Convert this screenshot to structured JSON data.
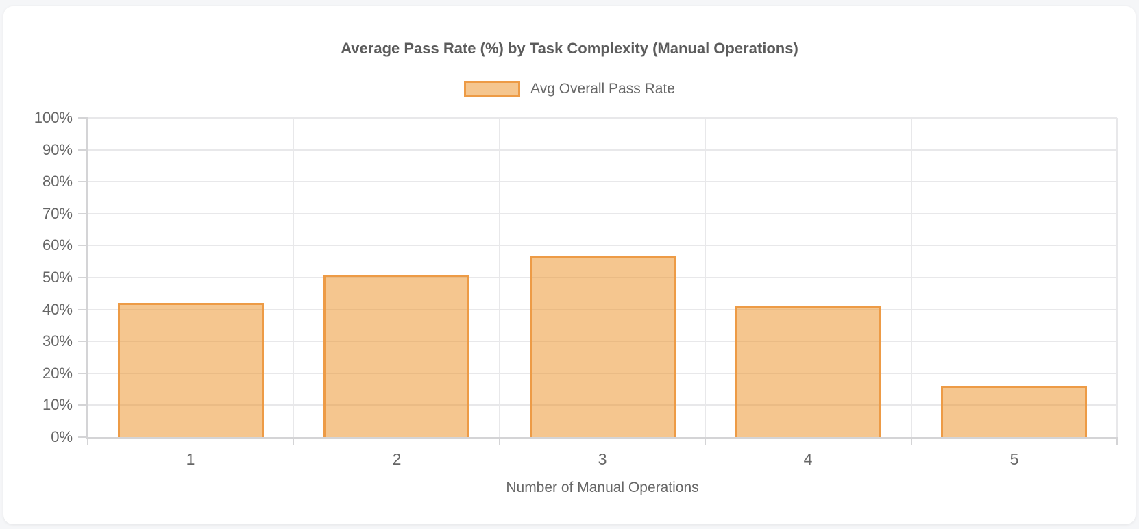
{
  "chart_data": {
    "type": "bar",
    "title": "Average Pass Rate (%) by Task Complexity (Manual Operations)",
    "series_name": "Avg Overall Pass Rate",
    "categories": [
      "1",
      "2",
      "3",
      "4",
      "5"
    ],
    "values": [
      42.0,
      50.8,
      56.6,
      41.3,
      16.0
    ],
    "xlabel": "Number of Manual Operations",
    "ylabel": "",
    "ylim": [
      0,
      100
    ],
    "ytick_labels": [
      "0%",
      "10%",
      "20%",
      "30%",
      "40%",
      "50%",
      "60%",
      "70%",
      "80%",
      "90%",
      "100%"
    ],
    "grid": true,
    "legend_position": "top",
    "colors": {
      "bar_fill": "rgba(235,145,40,0.52)",
      "bar_border": "#ED9B46",
      "text": "#666666",
      "title_text": "#5C5C5C",
      "grid": "#E8E8EA",
      "axis": "#D4D4D6",
      "page_bg": "#F5F6F8",
      "card_bg": "#FFFFFF"
    }
  }
}
